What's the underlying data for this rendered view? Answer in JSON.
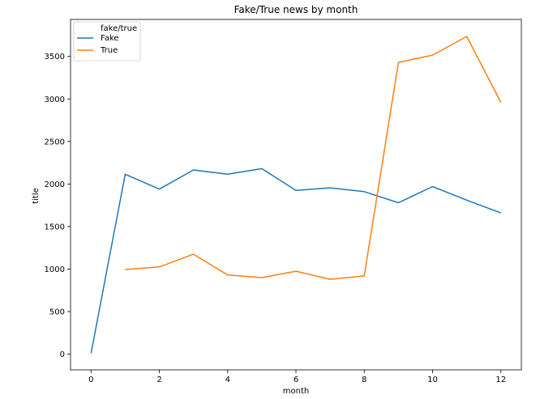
{
  "chart_data": {
    "type": "line",
    "title": "Fake/True news by month",
    "xlabel": "month",
    "ylabel": "title",
    "xlim": [
      -0.6,
      12.6
    ],
    "ylim": [
      -185,
      3935
    ],
    "xticks": [
      0,
      2,
      4,
      6,
      8,
      10,
      12
    ],
    "yticks": [
      0,
      500,
      1000,
      1500,
      2000,
      2500,
      3000,
      3500
    ],
    "grid": false,
    "legend": {
      "title": "fake/true",
      "position": "top-left"
    },
    "series": [
      {
        "name": "Fake",
        "color": "#1f77b4",
        "x": [
          0,
          1,
          2,
          3,
          4,
          5,
          6,
          7,
          8,
          9,
          10,
          11,
          12
        ],
        "y": [
          10,
          2115,
          1940,
          2165,
          2115,
          2180,
          1925,
          1955,
          1910,
          1780,
          1970,
          1810,
          1660
        ]
      },
      {
        "name": "True",
        "color": "#ff7f0e",
        "x": [
          1,
          2,
          3,
          4,
          5,
          6,
          7,
          8,
          9,
          10,
          11,
          12
        ],
        "y": [
          995,
          1025,
          1175,
          930,
          900,
          975,
          880,
          920,
          3430,
          3515,
          3735,
          2960
        ]
      }
    ]
  }
}
